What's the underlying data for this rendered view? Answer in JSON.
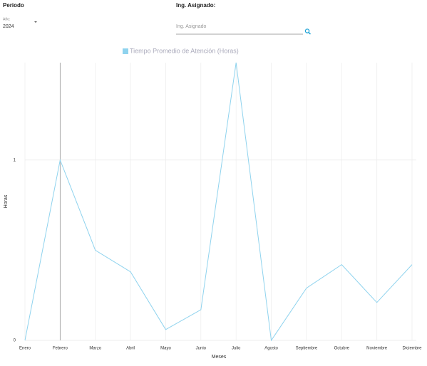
{
  "filters": {
    "period_label": "Periodo",
    "year_label": "Año:",
    "year_value": "2024",
    "engineer_label": "Ing. Asignado:",
    "engineer_placeholder": "Ing. Asignado"
  },
  "chart_data": {
    "type": "line",
    "x_label": "Meses",
    "y_label": "Horas",
    "categories": [
      "Enero",
      "Febrero",
      "Marzo",
      "Abril",
      "Mayo",
      "Junio",
      "Julio",
      "Agosto",
      "Septiembre",
      "Octubre",
      "Noviembre",
      "Diciembre"
    ],
    "series": [
      {
        "name": "Tiempo Promedio de Atención (Horas)",
        "color": "#8fd3ee",
        "values": [
          0,
          1,
          0.5,
          0.38,
          0.06,
          0.17,
          1.54,
          0,
          0.29,
          0.42,
          0.21,
          0.42
        ]
      }
    ],
    "ylim": [
      0,
      1.54
    ],
    "yticks": [
      0,
      1
    ],
    "grid": true
  }
}
